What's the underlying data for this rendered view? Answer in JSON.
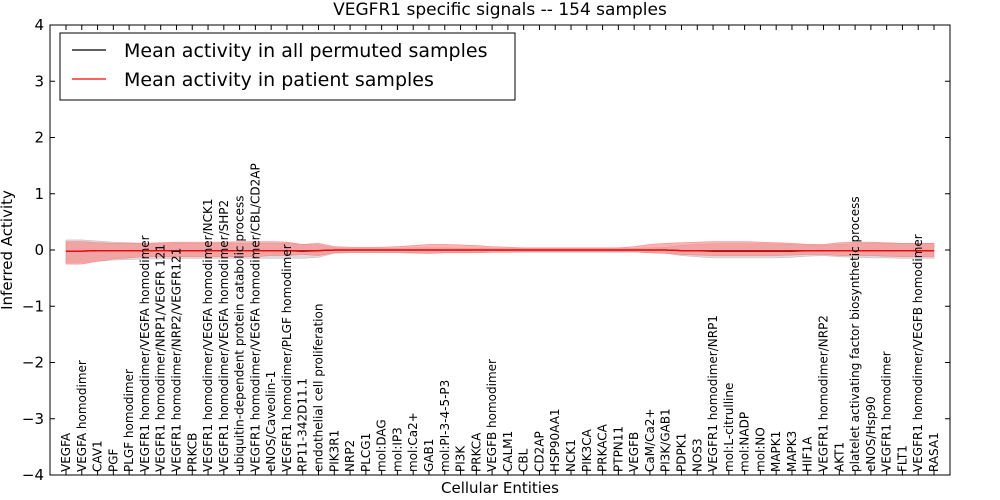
{
  "chart_data": {
    "type": "line",
    "title": "VEGFR1 specific signals -- 154 samples",
    "xlabel": "Cellular Entities",
    "ylabel": "Inferred Activity",
    "ylim": [
      -4,
      4
    ],
    "yticks": [
      -4,
      -3,
      -2,
      -1,
      0,
      1,
      2,
      3,
      4
    ],
    "grid": false,
    "legend": {
      "placement": "top-left",
      "entries": [
        {
          "label": "Mean activity in all permuted samples",
          "color": "#000000"
        },
        {
          "label": "Mean activity in patient samples",
          "color": "#ff0000"
        }
      ]
    },
    "categories": [
      "VEGFA",
      "VEGFA homodimer",
      "CAV1",
      "PGF",
      "PLGF homodimer",
      "VEGFR1 homodimer/VEGFA homodimer",
      "VEGFR1 homodimer/NRP1/VEGFR 121",
      "VEGFR1 homodimer/NRP2/VEGFR121",
      "PRKCB",
      "VEGFR1 homodimer/VEGFA homodimer/NCK1",
      "VEGFR1 homodimer/VEGFA homodimer/SHP2",
      "ubiquitin-dependent protein catabolic process",
      "VEGFR1 homodimer/VEGFA homodimer/CBL/CD2AP",
      "eNOS/Caveolin-1",
      "VEGFR1 homodimer/PLGF homodimer",
      "RP11-342D11.1",
      "endothelial cell proliferation",
      "PIK3R1",
      "NRP2",
      "PLCG1",
      "mol:DAG",
      "mol:IP3",
      "mol:Ca2+",
      "GAB1",
      "mol:PI-3-4-5-P3",
      "PI3K",
      "PRKCA",
      "VEGFB homodimer",
      "CALM1",
      "CBL",
      "CD2AP",
      "HSP90AA1",
      "NCK1",
      "PIK3CA",
      "PRKACA",
      "PTPN11",
      "VEGFB",
      "CaM/Ca2+",
      "PI3K/GAB1",
      "PDPK1",
      "NOS3",
      "VEGFR1 homodimer/NRP1",
      "mol:L-citrulline",
      "mol:NADP",
      "mol:NO",
      "MAPK1",
      "MAPK3",
      "HIF1A",
      "VEGFR1 homodimer/NRP2",
      "AKT1",
      "platelet activating factor biosynthetic process",
      "eNOS/Hsp90",
      "VEGFR1 homodimer",
      "FLT1",
      "VEGFR1 homodimer/VEGFB homodimer",
      "RASA1"
    ],
    "series": [
      {
        "name": "Mean activity in all permuted samples",
        "color": "#000000",
        "band_color": "#bdbdbd",
        "values": [
          -0.02,
          -0.02,
          -0.01,
          -0.01,
          -0.01,
          -0.01,
          -0.01,
          -0.01,
          -0.01,
          -0.01,
          -0.01,
          -0.01,
          -0.01,
          -0.01,
          -0.01,
          -0.02,
          -0.01,
          0,
          0,
          0,
          0,
          0,
          0,
          0,
          0,
          0,
          0,
          0,
          0,
          0,
          0,
          0,
          0,
          0,
          0,
          0,
          0,
          0,
          0,
          -0.01,
          -0.01,
          -0.02,
          -0.02,
          -0.02,
          -0.02,
          -0.02,
          -0.02,
          -0.01,
          -0.01,
          -0.01,
          -0.01,
          -0.01,
          -0.01,
          -0.01,
          -0.01,
          -0.01
        ],
        "lower": [
          -0.22,
          -0.22,
          -0.2,
          -0.18,
          -0.17,
          -0.16,
          -0.16,
          -0.15,
          -0.15,
          -0.15,
          -0.15,
          -0.15,
          -0.15,
          -0.15,
          -0.15,
          -0.15,
          -0.13,
          -0.06,
          -0.05,
          -0.05,
          -0.05,
          -0.05,
          -0.06,
          -0.06,
          -0.05,
          -0.05,
          -0.05,
          -0.04,
          -0.04,
          -0.04,
          -0.04,
          -0.04,
          -0.04,
          -0.04,
          -0.04,
          -0.04,
          -0.04,
          -0.05,
          -0.06,
          -0.1,
          -0.12,
          -0.14,
          -0.14,
          -0.14,
          -0.14,
          -0.14,
          -0.13,
          -0.11,
          -0.1,
          -0.12,
          -0.13,
          -0.14,
          -0.14,
          -0.15,
          -0.15,
          -0.15
        ],
        "upper": [
          0.18,
          0.18,
          0.16,
          0.14,
          0.13,
          0.12,
          0.12,
          0.12,
          0.12,
          0.12,
          0.12,
          0.12,
          0.12,
          0.12,
          0.12,
          0.1,
          0.09,
          0.04,
          0.03,
          0.03,
          0.03,
          0.03,
          0.04,
          0.04,
          0.04,
          0.03,
          0.03,
          0.03,
          0.03,
          0.03,
          0.03,
          0.03,
          0.03,
          0.03,
          0.03,
          0.03,
          0.03,
          0.04,
          0.05,
          0.08,
          0.1,
          0.11,
          0.11,
          0.11,
          0.11,
          0.11,
          0.1,
          0.09,
          0.08,
          0.1,
          0.11,
          0.12,
          0.12,
          0.12,
          0.12,
          0.12
        ]
      },
      {
        "name": "Mean activity in patient samples",
        "color": "#ff0000",
        "band_color": "#ff7f7f",
        "values": [
          -0.02,
          -0.02,
          -0.01,
          -0.01,
          -0.01,
          -0.01,
          -0.01,
          -0.01,
          -0.01,
          -0.01,
          -0.01,
          -0.01,
          -0.01,
          -0.01,
          -0.01,
          -0.01,
          -0.01,
          0,
          0,
          0,
          0,
          0,
          0,
          0,
          0,
          0,
          0,
          0,
          0,
          0,
          0,
          0,
          0,
          0,
          0,
          0,
          0,
          0,
          0,
          -0.01,
          -0.01,
          -0.01,
          -0.01,
          -0.01,
          -0.01,
          -0.01,
          -0.01,
          -0.01,
          -0.01,
          -0.01,
          -0.01,
          -0.01,
          -0.01,
          -0.01,
          -0.01,
          -0.01
        ],
        "lower": [
          -0.25,
          -0.25,
          -0.2,
          -0.16,
          -0.14,
          -0.12,
          -0.12,
          -0.12,
          -0.12,
          -0.12,
          -0.12,
          -0.12,
          -0.12,
          -0.1,
          -0.1,
          -0.08,
          -0.1,
          -0.05,
          -0.04,
          -0.04,
          -0.04,
          -0.04,
          -0.05,
          -0.06,
          -0.05,
          -0.05,
          -0.05,
          -0.04,
          -0.04,
          -0.03,
          -0.03,
          -0.03,
          -0.03,
          -0.03,
          -0.03,
          -0.03,
          -0.03,
          -0.05,
          -0.06,
          -0.08,
          -0.09,
          -0.1,
          -0.1,
          -0.1,
          -0.1,
          -0.1,
          -0.09,
          -0.08,
          -0.08,
          -0.1,
          -0.1,
          -0.1,
          -0.11,
          -0.12,
          -0.12,
          -0.12
        ],
        "upper": [
          0.15,
          0.15,
          0.13,
          0.12,
          0.12,
          0.12,
          0.13,
          0.14,
          0.14,
          0.14,
          0.14,
          0.15,
          0.15,
          0.15,
          0.14,
          0.1,
          0.12,
          0.06,
          0.05,
          0.05,
          0.05,
          0.06,
          0.08,
          0.1,
          0.1,
          0.09,
          0.08,
          0.06,
          0.05,
          0.04,
          0.04,
          0.04,
          0.04,
          0.04,
          0.04,
          0.04,
          0.06,
          0.1,
          0.12,
          0.13,
          0.14,
          0.15,
          0.15,
          0.15,
          0.14,
          0.13,
          0.12,
          0.1,
          0.1,
          0.13,
          0.14,
          0.14,
          0.13,
          0.12,
          0.12,
          0.12
        ]
      }
    ]
  }
}
